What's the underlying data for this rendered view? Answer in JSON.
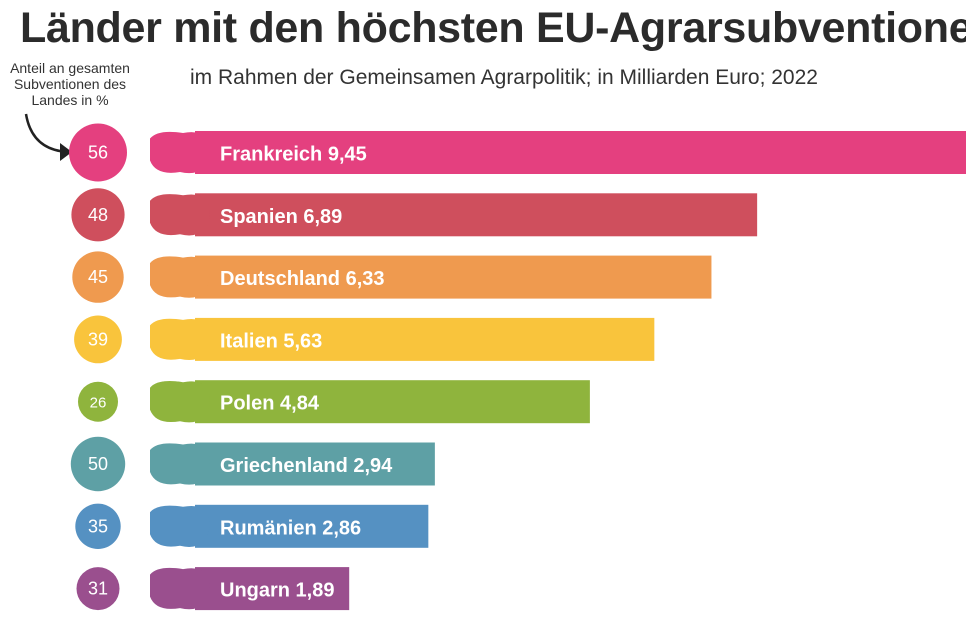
{
  "chart_data": {
    "type": "bar",
    "orientation": "horizontal",
    "title": "Länder mit den höchsten EU-Agrarsubventionen",
    "subtitle": "im Rahmen der Gemeinsamen Agrarpolitik; in Milliarden Euro; 2022",
    "share_note": "Anteil an gesamten Subventionen des Landes in %",
    "categories": [
      "Frankreich",
      "Spanien",
      "Deutschland",
      "Italien",
      "Polen",
      "Griechenland",
      "Rumänien",
      "Ungarn"
    ],
    "values": [
      9.45,
      6.89,
      6.33,
      5.63,
      4.84,
      2.94,
      2.86,
      1.89
    ],
    "value_labels": [
      "9,45",
      "6,89",
      "6,33",
      "5,63",
      "4,84",
      "2,94",
      "2,86",
      "1,89"
    ],
    "share_percent": [
      56,
      48,
      45,
      39,
      26,
      50,
      35,
      31
    ],
    "colors": [
      "#e4407f",
      "#cf4f5d",
      "#ef9a4f",
      "#f9c43c",
      "#8fb43d",
      "#5ea0a5",
      "#5591c2",
      "#9a4f8e"
    ],
    "unit": "Milliarden Euro",
    "year": 2022,
    "axis_range": [
      0,
      9.45
    ]
  }
}
